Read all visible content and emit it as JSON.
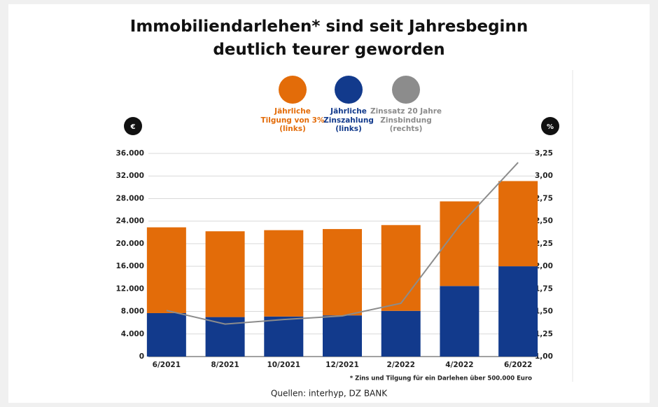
{
  "chart_data": {
    "type": "bar",
    "title": "Immobiliendarlehen* sind seit Jahresbeginn\ndeutlich teurer geworden",
    "categories": [
      "6/2021",
      "8/2021",
      "10/2021",
      "12/2021",
      "2/2022",
      "4/2022",
      "6/2022"
    ],
    "series": [
      {
        "name": "Jährliche\nTilgung von 3%\n(links)",
        "color": "#e36c09",
        "type": "bar",
        "values": [
          15200,
          15200,
          15300,
          15300,
          15200,
          15000,
          15100
        ]
      },
      {
        "name": "Jährliche\nZinszahlung\n(links)",
        "color": "#123a8c",
        "type": "bar",
        "values": [
          7700,
          7000,
          7100,
          7300,
          8100,
          12500,
          16000
        ]
      },
      {
        "name": "Zinssatz 20 Jahre\nZinsbindung\n(rechts)",
        "color": "#8c8c8c",
        "type": "line",
        "axis": "y2",
        "values": [
          1.51,
          1.36,
          1.41,
          1.45,
          1.59,
          2.45,
          3.15
        ]
      }
    ],
    "ylim": [
      0,
      36000
    ],
    "yticks": [
      0,
      {
        "value": 4000,
        "label": "4.000"
      },
      {
        "value": 8000,
        "label": "8.000"
      },
      {
        "value": 12000,
        "label": "12.000"
      },
      {
        "value": 16000,
        "label": "16.000"
      },
      {
        "value": 20000,
        "label": "20.000"
      },
      {
        "value": 24000,
        "label": "24.000"
      },
      {
        "value": 28000,
        "label": "28.000"
      },
      {
        "value": 32000,
        "label": "32.000"
      },
      {
        "value": 36000,
        "label": "36.000"
      }
    ],
    "y2lim": [
      1,
      3.25
    ],
    "y2ticks": [
      {
        "value": 1,
        "label": "1,00"
      },
      {
        "value": 1.25,
        "label": "1,25"
      },
      {
        "value": 1.5,
        "label": "1,50"
      },
      {
        "value": 1.75,
        "label": "1,75"
      },
      {
        "value": 2,
        "label": "2,00"
      },
      {
        "value": 2.25,
        "label": "2,25"
      },
      {
        "value": 2.5,
        "label": "2,50"
      },
      {
        "value": 2.75,
        "label": "2,75"
      },
      {
        "value": 3,
        "label": "3,00"
      },
      {
        "value": 3.25,
        "label": "3,25"
      }
    ],
    "y_badge": "€",
    "y2_badge": "%",
    "grid": true,
    "footnote": "* Zins und Tilgung für ein Darlehen über 500.000 Euro",
    "source": "Quellen: interhyp, DZ BANK"
  }
}
